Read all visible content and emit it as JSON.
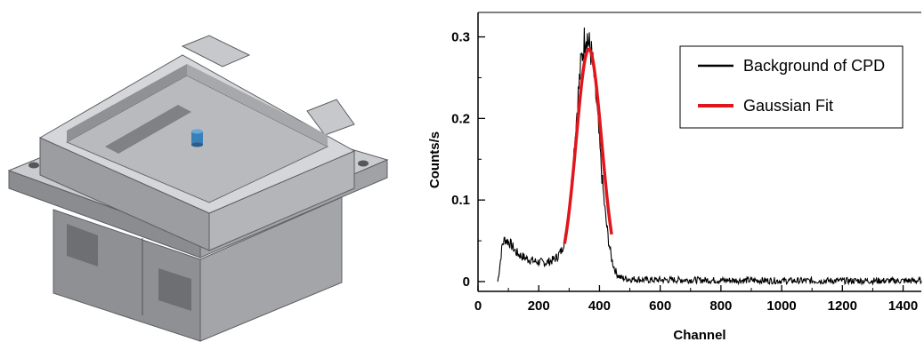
{
  "colors": {
    "background_series": "#000000",
    "fit_series": "#e0161c",
    "housing_light": "#c3c5c8",
    "housing_mid": "#a9abae",
    "housing_dark": "#85878a",
    "sensor": "#3b7fb8"
  },
  "illustration": {
    "icon": "detector-housing-3d-render"
  },
  "chart_data": {
    "type": "line",
    "title": "",
    "xlabel": "Channel",
    "ylabel": "Counts/s",
    "xlim": [
      0,
      1460
    ],
    "ylim": [
      -0.012,
      0.33
    ],
    "xticks": [
      0,
      200,
      400,
      600,
      800,
      1000,
      1200,
      1400
    ],
    "yticks": [
      0,
      0.1,
      0.2,
      0.3
    ],
    "ytick_labels": [
      "0",
      "0.1",
      "0.2",
      "0.3"
    ],
    "grid": false,
    "legend_position": "top-right",
    "series": [
      {
        "name": "Background of CPD",
        "color": "#000000",
        "x": [
          65,
          72,
          80,
          88,
          96,
          105,
          115,
          125,
          140,
          155,
          170,
          185,
          200,
          215,
          230,
          245,
          260,
          275,
          290,
          300,
          310,
          320,
          330,
          340,
          350,
          355,
          360,
          365,
          370,
          375,
          380,
          390,
          400,
          410,
          420,
          430,
          440,
          450,
          460,
          470,
          480,
          500,
          520,
          550,
          600,
          700,
          800,
          900,
          1000,
          1100,
          1200,
          1300,
          1400,
          1460
        ],
        "y": [
          0.0,
          0.02,
          0.045,
          0.052,
          0.05,
          0.047,
          0.042,
          0.036,
          0.032,
          0.029,
          0.027,
          0.025,
          0.024,
          0.023,
          0.024,
          0.026,
          0.03,
          0.038,
          0.058,
          0.085,
          0.13,
          0.18,
          0.23,
          0.27,
          0.295,
          0.305,
          0.3,
          0.29,
          0.285,
          0.275,
          0.26,
          0.22,
          0.17,
          0.12,
          0.08,
          0.05,
          0.028,
          0.015,
          0.008,
          0.005,
          0.004,
          0.003,
          0.003,
          0.002,
          0.002,
          0.002,
          0.0015,
          0.0015,
          0.001,
          0.001,
          0.001,
          0.001,
          0.001,
          0.001
        ]
      },
      {
        "name": "Gaussian Fit",
        "color": "#e0161c",
        "model": "gaussian",
        "amplitude": 0.285,
        "mean": 365,
        "sigma": 42,
        "x_range": [
          285,
          440
        ]
      }
    ]
  }
}
